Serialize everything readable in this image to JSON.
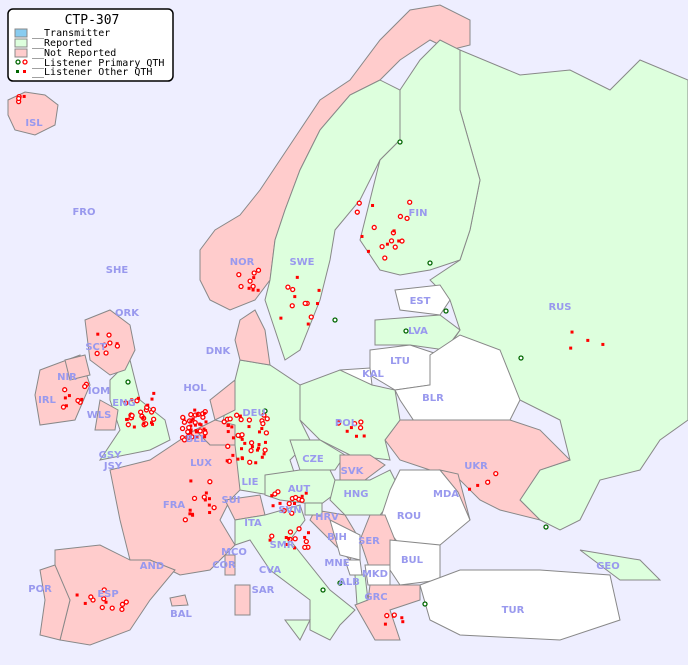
{
  "legend": {
    "title": "CTP-307",
    "items": [
      {
        "label": "__Transmitter",
        "color": "#88ccf0"
      },
      {
        "label": "__Reported",
        "color": "#ddffdd"
      },
      {
        "label": "__Not Reported",
        "color": "#ffcccc"
      },
      {
        "label": "__Listener Primary QTH",
        "symbol": "circle"
      },
      {
        "label": "__Listener Other QTH",
        "symbol": "square"
      }
    ]
  },
  "colors": {
    "sea": "#eeeeff",
    "reported": "#ddffdd",
    "not_reported": "#ffcccc",
    "no_data": "#ffffff",
    "border": "#888888",
    "label": "#9999ee",
    "listener_red": "#ff0000",
    "listener_green": "#006600"
  },
  "countries": [
    {
      "code": "ISL",
      "status": "not_reported"
    },
    {
      "code": "FRO",
      "status": "not_reported"
    },
    {
      "code": "SHE",
      "status": "not_reported"
    },
    {
      "code": "ORK",
      "status": "not_reported"
    },
    {
      "code": "NOR",
      "status": "not_reported"
    },
    {
      "code": "SWE",
      "status": "reported"
    },
    {
      "code": "FIN",
      "status": "reported"
    },
    {
      "code": "EST",
      "status": "no_data"
    },
    {
      "code": "LVA",
      "status": "reported"
    },
    {
      "code": "LTU",
      "status": "no_data"
    },
    {
      "code": "KAL",
      "status": "no_data"
    },
    {
      "code": "BLR",
      "status": "no_data"
    },
    {
      "code": "RUS",
      "status": "reported"
    },
    {
      "code": "DNK",
      "status": "not_reported"
    },
    {
      "code": "HOL",
      "status": "not_reported"
    },
    {
      "code": "DEU",
      "status": "reported"
    },
    {
      "code": "POL",
      "status": "reported"
    },
    {
      "code": "SCT",
      "status": "not_reported"
    },
    {
      "code": "NIR",
      "status": "not_reported"
    },
    {
      "code": "IRL",
      "status": "not_reported"
    },
    {
      "code": "IOM",
      "status": "not_reported"
    },
    {
      "code": "ENG",
      "status": "reported"
    },
    {
      "code": "WLS",
      "status": "not_reported"
    },
    {
      "code": "GSY",
      "status": "not_reported"
    },
    {
      "code": "JSY",
      "status": "not_reported"
    },
    {
      "code": "BEL",
      "status": "not_reported"
    },
    {
      "code": "LUX",
      "status": "not_reported"
    },
    {
      "code": "FRA",
      "status": "not_reported"
    },
    {
      "code": "SUI",
      "status": "not_reported"
    },
    {
      "code": "LIE",
      "status": "not_reported"
    },
    {
      "code": "AUT",
      "status": "reported"
    },
    {
      "code": "CZE",
      "status": "reported"
    },
    {
      "code": "SVK",
      "status": "not_reported"
    },
    {
      "code": "HNG",
      "status": "reported"
    },
    {
      "code": "UKR",
      "status": "not_reported"
    },
    {
      "code": "MDA",
      "status": "not_reported"
    },
    {
      "code": "ROU",
      "status": "no_data"
    },
    {
      "code": "SVN",
      "status": "reported"
    },
    {
      "code": "HRV",
      "status": "not_reported"
    },
    {
      "code": "BIH",
      "status": "no_data"
    },
    {
      "code": "SER",
      "status": "not_reported"
    },
    {
      "code": "MNE",
      "status": "no_data"
    },
    {
      "code": "ALB",
      "status": "reported"
    },
    {
      "code": "MKD",
      "status": "no_data"
    },
    {
      "code": "BUL",
      "status": "no_data"
    },
    {
      "code": "GRC",
      "status": "not_reported"
    },
    {
      "code": "TUR",
      "status": "no_data"
    },
    {
      "code": "GEO",
      "status": "reported"
    },
    {
      "code": "ITA",
      "status": "reported"
    },
    {
      "code": "SMR",
      "status": "reported"
    },
    {
      "code": "CVA",
      "status": "reported"
    },
    {
      "code": "MCO",
      "status": "not_reported"
    },
    {
      "code": "COR",
      "status": "not_reported"
    },
    {
      "code": "SAR",
      "status": "not_reported"
    },
    {
      "code": "AND",
      "status": "not_reported"
    },
    {
      "code": "ESP",
      "status": "not_reported"
    },
    {
      "code": "POR",
      "status": "not_reported"
    },
    {
      "code": "BAL",
      "status": "not_reported"
    }
  ]
}
